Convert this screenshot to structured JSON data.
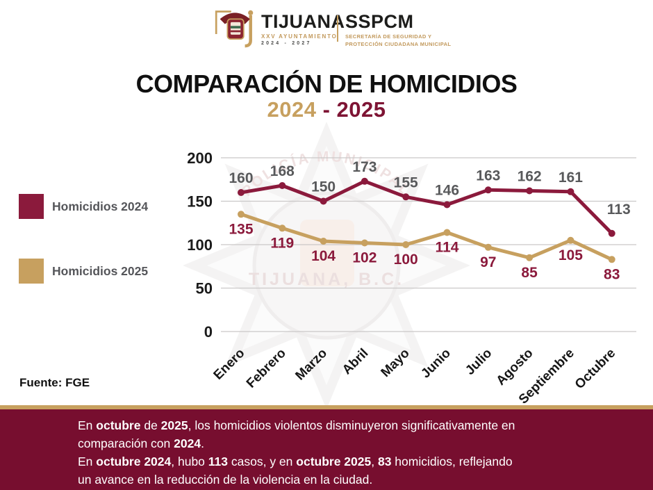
{
  "header": {
    "brand": "TIJUANA",
    "brand_sub": "XXV AYUNTAMIENTO",
    "brand_years": "2024 - 2027",
    "org": "SSPCM",
    "org_sub1": "SECRETARÍA DE SEGURIDAD Y",
    "org_sub2": "PROTECCIÓN CIUDADANA MUNICIPAL"
  },
  "title": "COMPARACIÓN DE HOMICIDIOS",
  "subtitle": {
    "year_a": "2024",
    "dash": "-",
    "year_b": "2025"
  },
  "legend": [
    {
      "label": "Homicidios 2024",
      "color": "#8b1a3c"
    },
    {
      "label": "Homicidios 2025",
      "color": "#c7a05f"
    }
  ],
  "chart_data": {
    "type": "line",
    "title": "COMPARACIÓN DE HOMICIDIOS",
    "subtitle": "2024 - 2025",
    "categories": [
      "Enero",
      "Febrero",
      "Marzo",
      "Abril",
      "Mayo",
      "Junio",
      "Julio",
      "Agosto",
      "Septiembre",
      "Octubre"
    ],
    "series": [
      {
        "name": "Homicidios 2024",
        "color": "#8b1a3c",
        "label_color": "#58595b",
        "label_position": "above",
        "values": [
          160,
          168,
          150,
          173,
          155,
          146,
          163,
          162,
          161,
          113
        ]
      },
      {
        "name": "Homicidios 2025",
        "color": "#c7a05f",
        "label_color": "#8b1a3c",
        "label_position": "below",
        "values": [
          135,
          119,
          104,
          102,
          100,
          114,
          97,
          85,
          105,
          83
        ]
      }
    ],
    "ylim": [
      0,
      200
    ],
    "yticks": [
      0,
      50,
      100,
      150,
      200
    ],
    "grid": true,
    "legend_position": "left"
  },
  "watermark": {
    "arc_text": "POLICÍA MUNICIPAL",
    "center_text": "TIJUANA, B.C."
  },
  "source": "Fuente: FGE",
  "banner": {
    "paragraphs": [
      {
        "segments": [
          {
            "t": "En "
          },
          {
            "t": "octubre",
            "b": true
          },
          {
            "t": " de "
          },
          {
            "t": "2025",
            "b": true
          },
          {
            "t": ", los homicidios violentos disminuyeron significativamente en"
          },
          {
            "br": true
          },
          {
            "t": "comparación con "
          },
          {
            "t": "2024",
            "b": true
          },
          {
            "t": "."
          }
        ]
      },
      {
        "segments": [
          {
            "t": "En "
          },
          {
            "t": "octubre 2024",
            "b": true
          },
          {
            "t": ", hubo "
          },
          {
            "t": "113",
            "b": true
          },
          {
            "t": " casos, y en "
          },
          {
            "t": "octubre 2025",
            "b": true
          },
          {
            "t": ", "
          },
          {
            "t": "83",
            "b": true
          },
          {
            "t": " homicidios, reflejando"
          },
          {
            "br": true
          },
          {
            "t": "un avance en la reducción de la violencia en la ciudad."
          }
        ]
      }
    ]
  }
}
